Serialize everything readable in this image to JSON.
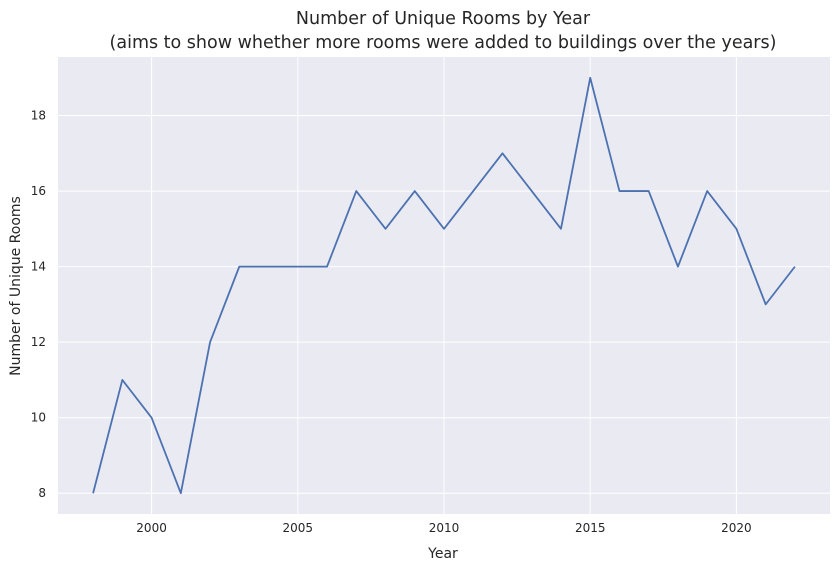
{
  "chart_data": {
    "type": "line",
    "title_line1": "Number of Unique Rooms by Year",
    "title_line2": "(aims to show whether more rooms were added to buildings over the years)",
    "xlabel": "Year",
    "ylabel": "Number of Unique Rooms",
    "x": [
      1998,
      1999,
      2000,
      2001,
      2002,
      2003,
      2004,
      2005,
      2006,
      2007,
      2008,
      2009,
      2010,
      2011,
      2012,
      2013,
      2014,
      2015,
      2016,
      2017,
      2018,
      2019,
      2020,
      2021,
      2022
    ],
    "series": [
      {
        "values": [
          8,
          11,
          10,
          8,
          12,
          14,
          14,
          14,
          14,
          16,
          15,
          16,
          15,
          16,
          17,
          16,
          15,
          19,
          16,
          16,
          14,
          16,
          15,
          13,
          14
        ],
        "color": "#4c72b0"
      }
    ],
    "xticks": [
      2000,
      2005,
      2010,
      2015,
      2020
    ],
    "yticks": [
      8,
      10,
      12,
      14,
      16,
      18
    ],
    "xlim": [
      1996.8,
      2023.2
    ],
    "ylim": [
      7.45,
      19.55
    ],
    "grid": true,
    "background_color": "#eaeaf2",
    "grid_color": "#ffffff"
  }
}
